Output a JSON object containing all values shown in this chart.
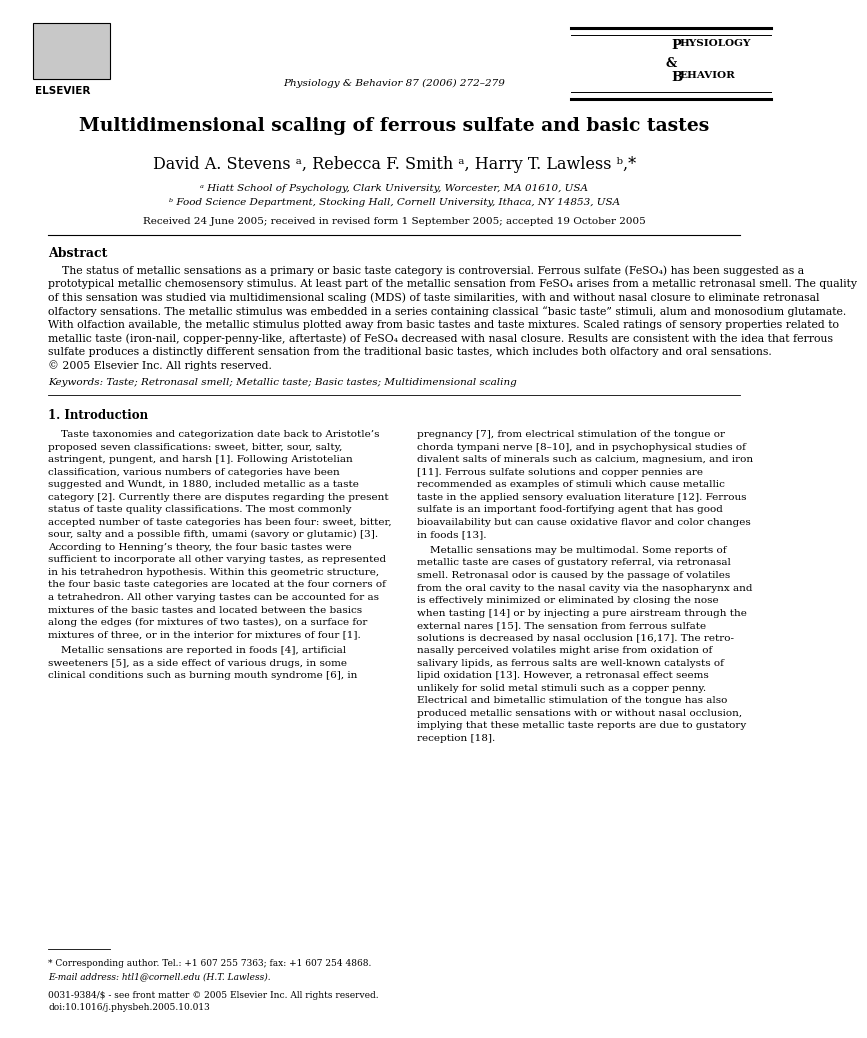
{
  "page_width": 9.92,
  "page_height": 13.23,
  "background_color": "#ffffff",
  "journal_name": "Physiology & Behavior 87 (2006) 272–279",
  "title": "Multidimensional scaling of ferrous sulfate and basic tastes",
  "authors": "David A. Stevens ᵃ, Rebecca F. Smith ᵃ, Harry T. Lawless ᵇ,*",
  "affil_a": "ᵃ Hiatt School of Psychology, Clark University, Worcester, MA 01610, USA",
  "affil_b": "ᵇ Food Science Department, Stocking Hall, Cornell University, Ithaca, NY 14853, USA",
  "received": "Received 24 June 2005; received in revised form 1 September 2005; accepted 19 October 2005",
  "abstract_heading": "Abstract",
  "abstract_text": "The status of metallic sensations as a primary or basic taste category is controversial. Ferrous sulfate (FeSO₄) has been suggested as a\nprototypical metallic chemosensory stimulus. At least part of the metallic sensation from FeSO₄ arises from a metallic retronasal smell. The quality\nof this sensation was studied via multidimensional scaling (MDS) of taste similarities, with and without nasal closure to eliminate retronasal\nolfactory sensations. The metallic stimulus was embedded in a series containing classical “basic taste” stimuli, alum and monosodium glutamate.\nWith olfaction available, the metallic stimulus plotted away from basic tastes and taste mixtures. Scaled ratings of sensory properties related to\nmetallic taste (iron-nail, copper-penny-like, aftertaste) of FeSO₄ decreased with nasal closure. Results are consistent with the idea that ferrous\nsulfate produces a distinctly different sensation from the traditional basic tastes, which includes both olfactory and oral sensations.\n© 2005 Elsevier Inc. All rights reserved.",
  "keywords_label": "Keywords:",
  "keywords": "Taste; Retronasal smell; Metallic taste; Basic tastes; Multidimensional scaling",
  "section1_heading": "1. Introduction",
  "col1_para1": "Taste taxonomies and categorization date back to Aristotle’s\nproposed seven classifications: sweet, bitter, sour, salty,\nastringent, pungent, and harsh [1]. Following Aristotelian\nclassification, various numbers of categories have been\nsuggested and Wundt, in 1880, included metallic as a taste\ncategory [2]. Currently there are disputes regarding the present\nstatus of taste quality classifications. The most commonly\naccepted number of taste categories has been four: sweet, bitter,\nsour, salty and a possible fifth, umami (savory or glutamic) [3].\nAccording to Henning’s theory, the four basic tastes were\nsufficient to incorporate all other varying tastes, as represented\nin his tetrahedron hypothesis. Within this geometric structure,\nthe four basic taste categories are located at the four corners of\na tetrahedron. All other varying tastes can be accounted for as\nmixtures of the basic tastes and located between the basics\nalong the edges (for mixtures of two tastes), on a surface for\nmixtures of three, or in the interior for mixtures of four [1].",
  "col1_para2": "Metallic sensations are reported in foods [4], artificial\nsweeteners [5], as a side effect of various drugs, in some\nclinical conditions such as burning mouth syndrome [6], in",
  "col1_footnote_star": "* Corresponding author. Tel.: +1 607 255 7363; fax: +1 607 254 4868.",
  "col1_footnote_email": "E-mail address: htl1@cornell.edu (H.T. Lawless).",
  "col1_footer1": "0031-9384/$ - see front matter © 2005 Elsevier Inc. All rights reserved.",
  "col1_footer2": "doi:10.1016/j.physbeh.2005.10.013",
  "col2_para1": "pregnancy [7], from electrical stimulation of the tongue or\nchorda tympani nerve [8–10], and in psychophysical studies of\ndivalent salts of minerals such as calcium, magnesium, and iron\n[11]. Ferrous sulfate solutions and copper pennies are\nrecommended as examples of stimuli which cause metallic\ntaste in the applied sensory evaluation literature [12]. Ferrous\nsulfate is an important food-fortifying agent that has good\nbioavailability but can cause oxidative flavor and color changes\nin foods [13].",
  "col2_para2": "Metallic sensations may be multimodal. Some reports of\nmetallic taste are cases of gustatory referral, via retronasal\nsmell. Retronasal odor is caused by the passage of volatiles\nfrom the oral cavity to the nasal cavity via the nasopharynx and\nis effectively minimized or eliminated by closing the nose\nwhen tasting [14] or by injecting a pure airstream through the\nexternal nares [15]. The sensation from ferrous sulfate\nsolutions is decreased by nasal occlusion [16,17]. The retro-\nnasally perceived volatiles might arise from oxidation of\nsalivary lipids, as ferrous salts are well-known catalysts of\nlipid oxidation [13]. However, a retronasal effect seems\nunlikely for solid metal stimuli such as a copper penny.\nElectrical and bimetallic stimulation of the tongue has also\nproduced metallic sensations with or without nasal occlusion,\nimplying that these metallic taste reports are due to gustatory\nreception [18]."
}
